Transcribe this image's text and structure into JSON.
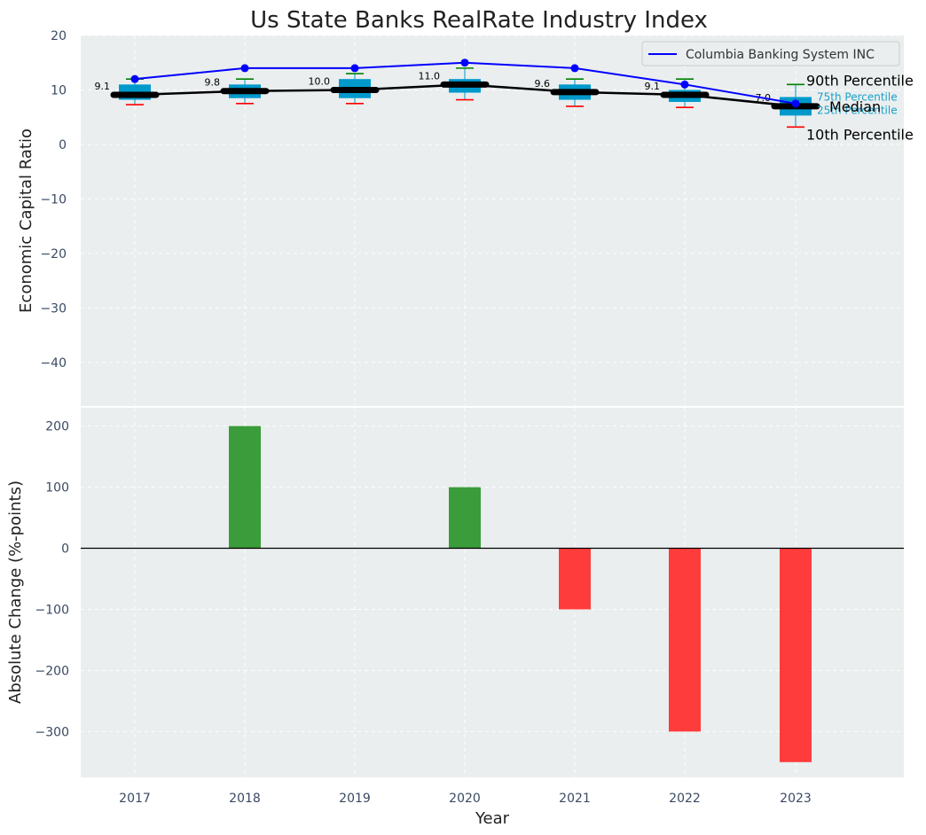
{
  "chart_data": [
    {
      "type": "box-line",
      "title": "Us State Banks RealRate Industry Index",
      "xlabel": "",
      "ylabel": "Economic Capital Ratio",
      "ylim": [
        -48,
        20
      ],
      "yticks": [
        20,
        10,
        0,
        -10,
        -20,
        -30,
        -40
      ],
      "ytick_labels": [
        "20",
        "10",
        "0",
        "−10",
        "−20",
        "−30",
        "−40"
      ],
      "categories": [
        "2017",
        "2018",
        "2019",
        "2020",
        "2021",
        "2022",
        "2023"
      ],
      "grid": true,
      "legend": {
        "position": "top-right",
        "entries": [
          "Columbia Banking System INC"
        ]
      },
      "series": [
        {
          "name": "Columbia Banking System INC",
          "color": "#0000ff",
          "values": [
            12,
            14,
            14,
            15,
            14,
            11,
            7.5
          ]
        },
        {
          "name": "Median",
          "color": "#000000",
          "values": [
            9.1,
            9.8,
            10.0,
            11.0,
            9.6,
            9.1,
            7.0
          ]
        }
      ],
      "boxes": {
        "p10": [
          7.3,
          7.5,
          7.5,
          8.2,
          7.0,
          6.8,
          3.2
        ],
        "p25": [
          8.2,
          8.5,
          8.5,
          9.5,
          8.2,
          7.8,
          5.3
        ],
        "median": [
          9.1,
          9.8,
          10.0,
          11.0,
          9.6,
          9.1,
          7.0
        ],
        "p75": [
          11.0,
          11.0,
          12.0,
          12.0,
          11.0,
          10.0,
          8.7
        ],
        "p90": [
          12.0,
          12.0,
          13.0,
          14.0,
          12.0,
          12.0,
          11.0
        ],
        "box_color": "#0099cc",
        "p10_color": "#ff0000",
        "p90_color": "#008000"
      },
      "median_labels": [
        "9.1",
        "9.8",
        "10.0",
        "11.0",
        "9.6",
        "9.1",
        "7.0"
      ],
      "percentile_labels": {
        "p90": "90th Percentile",
        "p75": "75th Percentile",
        "median": "Median",
        "p25": "25th Percentile",
        "p10": "10th Percentile"
      }
    },
    {
      "type": "bar",
      "xlabel": "Year",
      "ylabel": "Absolute Change (%-points)",
      "ylim": [
        -375,
        230
      ],
      "yticks": [
        200,
        100,
        0,
        -100,
        -200,
        -300
      ],
      "ytick_labels": [
        "200",
        "100",
        "0",
        "−100",
        "−200",
        "−300"
      ],
      "categories": [
        "2017",
        "2018",
        "2019",
        "2020",
        "2021",
        "2022",
        "2023"
      ],
      "values": [
        0,
        200,
        0,
        100,
        -100,
        -300,
        -350
      ],
      "positive_color": "#3a9c3a",
      "negative_color": "#ff3c3c",
      "grid": true
    }
  ]
}
